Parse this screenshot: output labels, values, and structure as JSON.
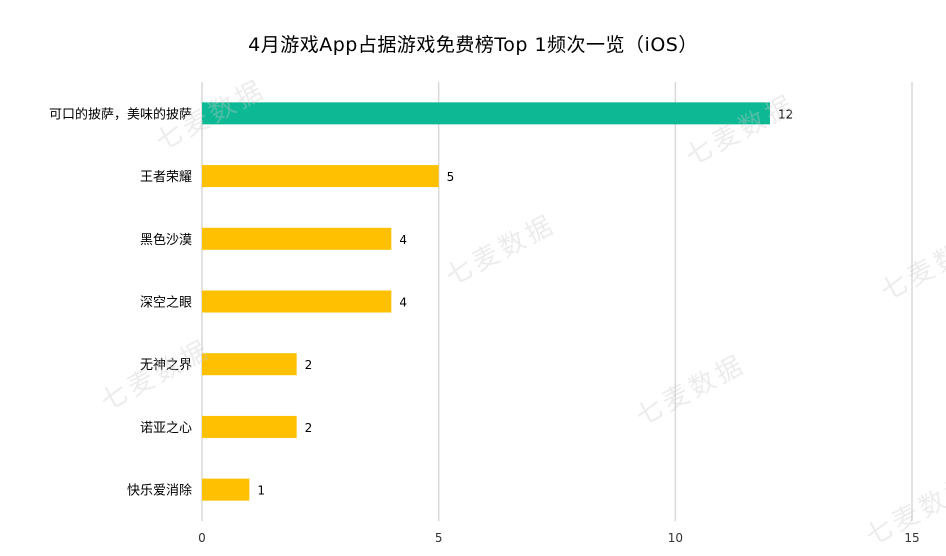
{
  "title": "4月游戏App占据游戏免费榜Top 1频次一览（iOS）",
  "watermark_text": "七麦数据",
  "chart_data": {
    "type": "bar",
    "orientation": "horizontal",
    "title": "4月游戏App占据游戏免费榜Top 1频次一览（iOS）",
    "categories": [
      "可口的披萨，美味的披萨",
      "王者荣耀",
      "黑色沙漠",
      "深空之眼",
      "无神之界",
      "诺亚之心",
      "快乐爱消除"
    ],
    "values": [
      12,
      5,
      4,
      4,
      2,
      2,
      1
    ],
    "bar_colors": [
      "#0db994",
      "#fec000",
      "#fec000",
      "#fec000",
      "#fec000",
      "#fec000",
      "#fec000"
    ],
    "xlim": [
      0,
      15
    ],
    "xticks": [
      0,
      5,
      10,
      15
    ],
    "grid": "vertical",
    "data_labels": true,
    "legend": "none"
  }
}
